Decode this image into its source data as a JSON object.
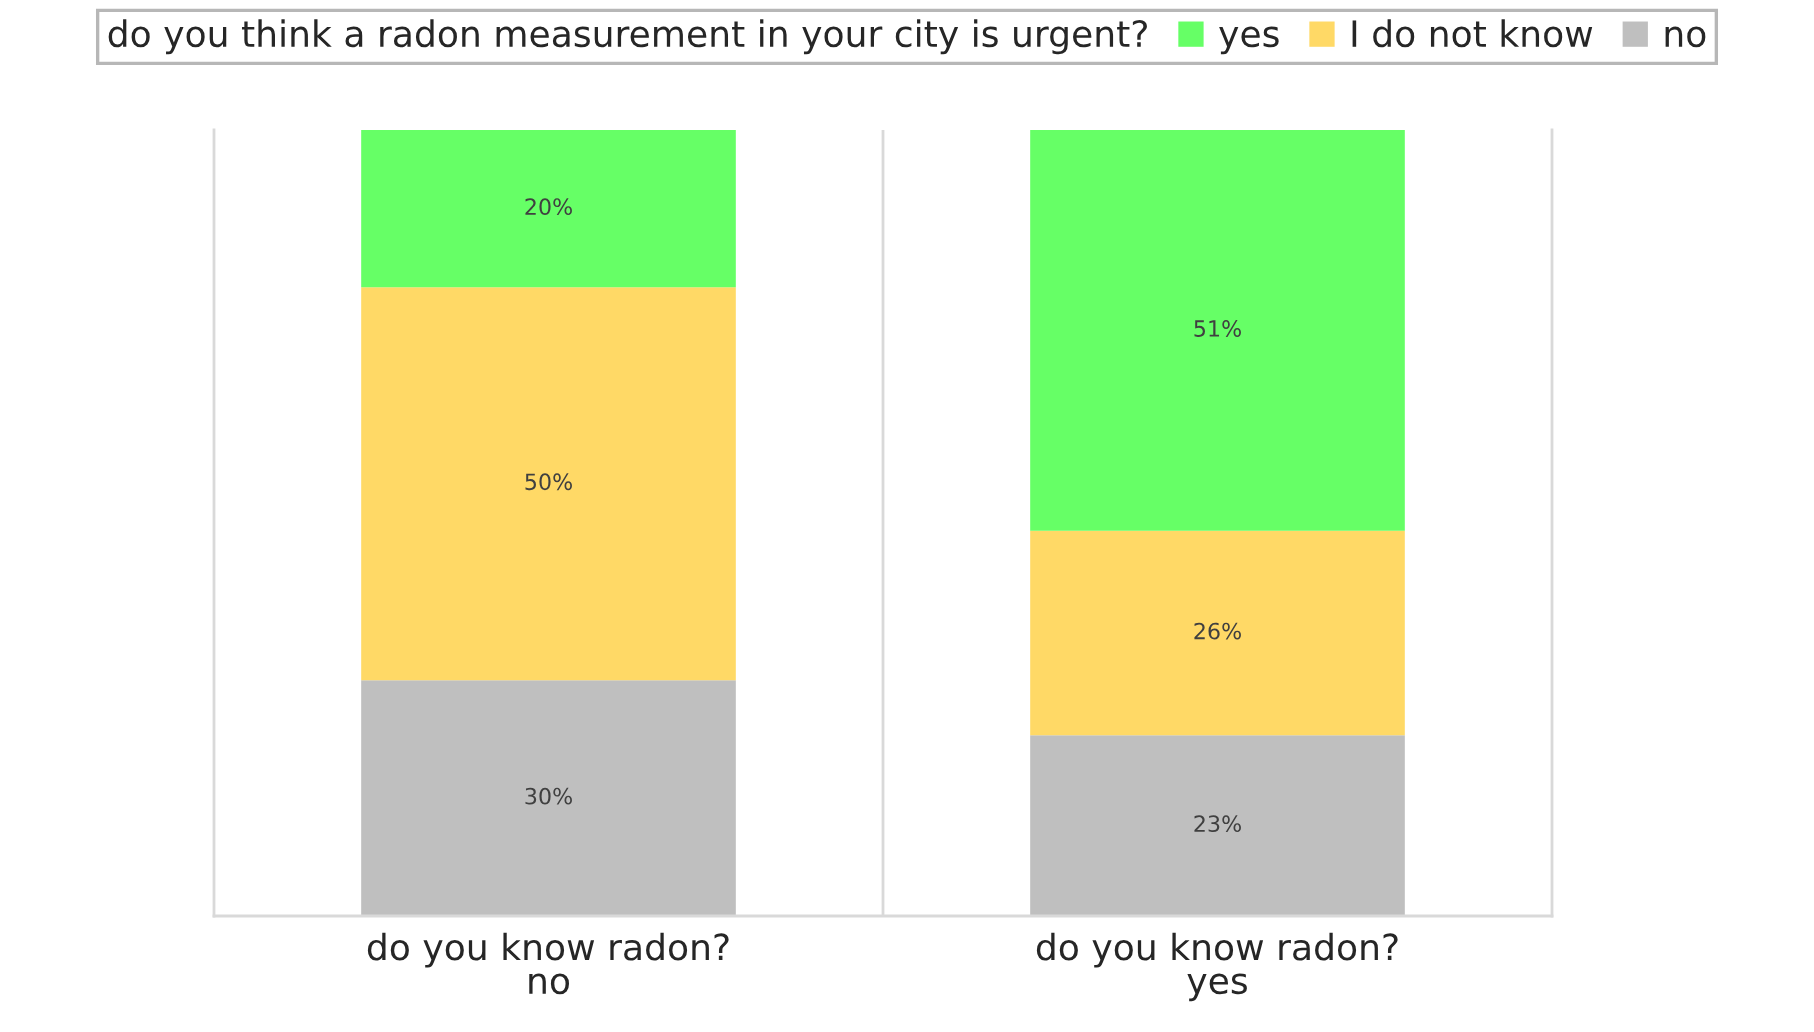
{
  "chart_data": {
    "type": "bar",
    "stacked": true,
    "legend_title": "do you think a radon measurement in your city is urgent?",
    "categories": [
      "do you know radon?\nno",
      "do you know radon?\nyes"
    ],
    "series": [
      {
        "name": "no",
        "color": "#bfbfbf",
        "values": [
          30,
          23
        ],
        "value_labels": [
          "30%",
          "23%"
        ]
      },
      {
        "name": "I do not know",
        "color": "#ffd966",
        "values": [
          50,
          26
        ],
        "value_labels": [
          "50%",
          "26%"
        ]
      },
      {
        "name": "yes",
        "color": "#66ff66",
        "values": [
          20,
          51
        ],
        "value_labels": [
          "20%",
          "51%"
        ]
      }
    ],
    "grid": "x",
    "legend": "top"
  }
}
